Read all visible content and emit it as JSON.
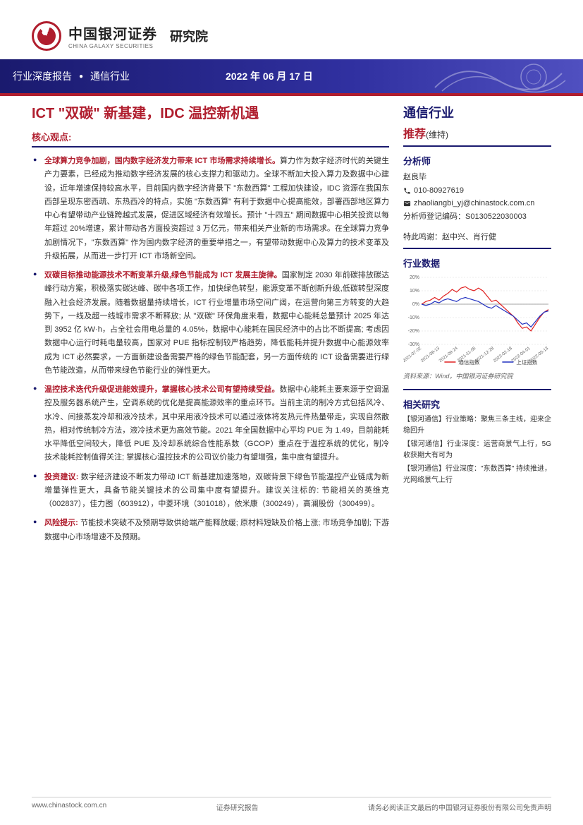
{
  "header": {
    "logo_cn": "中国银河证券",
    "logo_en": "CHINA GALAXY SECURITIES",
    "dept": "研究院",
    "banner_type": "行业深度报告",
    "banner_industry": "通信行业",
    "banner_date": "2022 年 06 月 17 日"
  },
  "main": {
    "title": "ICT \"双碳\" 新基建，IDC 温控新机遇",
    "core_label": "核心观点:",
    "bullets": [
      {
        "head": "全球算力竞争加剧，国内数字经济发力带来 ICT 市场需求持续增长。",
        "body": "算力作为数字经济时代的关键生产力要素，已经成为推动数字经济发展的核心支撑力和驱动力。全球不断加大投入算力及数据中心建设，近年增速保持较高水平，目前国内数字经济背景下 \"东数西算\" 工程加快建设，IDC 资源在我国东西部呈现东密西疏、东热西冷的特点，实施 \"东数西算\" 有利于数据中心提高能效，部署西部地区算力中心有望带动产业链跨越式发展，促进区域经济有效增长。预计 \"十四五\" 期间数据中心相关投资以每年超过 20%增速，累计带动各方面投资超过 3 万亿元，带来相关产业新的市场需求。在全球算力竞争加剧情况下，\"东数西算\" 作为国内数字经济的重要举措之一，有望带动数据中心及算力的技术变革及升级拓展，从而进一步打开 ICT 市场新空间。"
      },
      {
        "head": "双碳目标推动能源技术不断变革升级,绿色节能成为 ICT 发展主旋律。",
        "body": "国家制定 2030 年前碳排放碳达峰行动方案，积极落实碳达峰、碳中各项工作，加快绿色转型，能源变革不断创新升级,低碳转型深度融入社会经济发展。随着数据量持续增长，ICT 行业增量市场空间广阔，在运营向第三方转变的大趋势下，一线及超一线城市需求不断释放; 从 \"双碳\" 环保角度来看，数据中心能耗总量预计 2025 年达到 3952 亿 kW·h，占全社会用电总量的 4.05%，数据中心能耗在国民经济中的占比不断提高; 考虑因数据中心运行时耗电量较高，国家对 PUE 指标控制较严格趋势，降低能耗并提升数据中心能源效率成为 ICT 必然要求，一方面新建设备需要严格的绿色节能配套，另一方面传统的 ICT 设备需要进行绿色节能改造，从而带来绿色节能行业的弹性更大。"
      },
      {
        "head": "温控技术迭代升级促进能效提升，掌握核心技术公司有望持续受益。",
        "body": "数据中心能耗主要来源于空调温控及服务器系统产生，空调系统的优化是提高能源效率的重点环节。当前主流的制冷方式包括风冷、水冷、间接蒸发冷却和液冷技术，其中采用液冷技术可以通过液体将发热元件热量带走，实现自然散热，相对传统制冷方法，液冷技术更为高效节能。2021 年全国数据中心平均 PUE 为 1.49，目前能耗水平降低空间较大，降低 PUE 及冷却系统综合性能系数（GCOP）重点在于温控系统的优化，制冷技术能耗控制值得关注; 掌握核心温控技术的公司议价能力有望增强，集中度有望提升。"
      },
      {
        "head": "投资建议: ",
        "body": "数字经济建设不断发力带动 ICT 新基建加速落地，双碳背景下绿色节能温控产业链成为新增量弹性更大，具备节能关键技术的公司集中度有望提升。建议关注标的: 节能相关的英维克（002837），佳力图（603912），中菱环境（301018），依米康（300249），高澜股份（300499）。"
      },
      {
        "head": "风险提示: ",
        "body": "节能技术突破不及预期导致供给端产能释放缓; 原材料短缺及价格上涨; 市场竞争加剧; 下游数据中心市场增速不及预期。"
      }
    ]
  },
  "side": {
    "industry": "通信行业",
    "rating": "推荐",
    "rating_note": "(维持)",
    "analyst_label": "分析师",
    "analyst_name": "赵良毕",
    "phone": "010-80927619",
    "email": "zhaoliangbi_yj@chinastock.com.cn",
    "cert": "分析师登记编码：S0130522030003",
    "thanks": "特此鸣谢：赵中兴、肖行健",
    "data_label": "行业数据",
    "chart": {
      "type": "line",
      "ylim": [
        -30,
        20
      ],
      "yticks": [
        -30,
        -20,
        -10,
        0,
        10,
        20
      ],
      "xlabels": [
        "2021-07-02",
        "2021-08-13",
        "2021-09-24",
        "2021-11-05",
        "2021-12-28",
        "2022-02-18",
        "2022-04-01",
        "2022-05-13"
      ],
      "series": [
        {
          "name": "通信指数",
          "color": "#e02020",
          "points": [
            0,
            2,
            3,
            5,
            3,
            6,
            8,
            11,
            9,
            12,
            13,
            11,
            10,
            12,
            10,
            6,
            2,
            3,
            0,
            -3,
            -6,
            -9,
            -14,
            -18,
            -17,
            -20,
            -15,
            -10,
            -6,
            -4
          ]
        },
        {
          "name": "上证指数",
          "color": "#2030c0",
          "points": [
            0,
            -1,
            0,
            2,
            1,
            3,
            4,
            3,
            2,
            4,
            5,
            4,
            3,
            2,
            0,
            -2,
            -3,
            -1,
            -3,
            -5,
            -7,
            -9,
            -12,
            -15,
            -14,
            -17,
            -13,
            -9,
            -6,
            -5
          ]
        }
      ],
      "grid_color": "#dddddd",
      "axis_color": "#888888",
      "background": "#ffffff",
      "font_size": 7,
      "legend_marker": "——"
    },
    "chart_source": "资料来源：Wind，中国银河证券研究院",
    "related_label": "相关研究",
    "related": [
      "【银河通信】行业策略：聚焦三条主线，迎来企稳回升",
      "【银河通信】行业深度：运营商景气上行，5G 收获期大有可为",
      "【银河通信】行业深度：\"东数西算\" 持续推进，光网络景气上行"
    ]
  },
  "footer": {
    "url": "www.chinastock.com.cn",
    "mid": "证券研究报告",
    "disclaimer": "请务必阅读正文最后的中国银河证券股份有限公司免责声明"
  }
}
